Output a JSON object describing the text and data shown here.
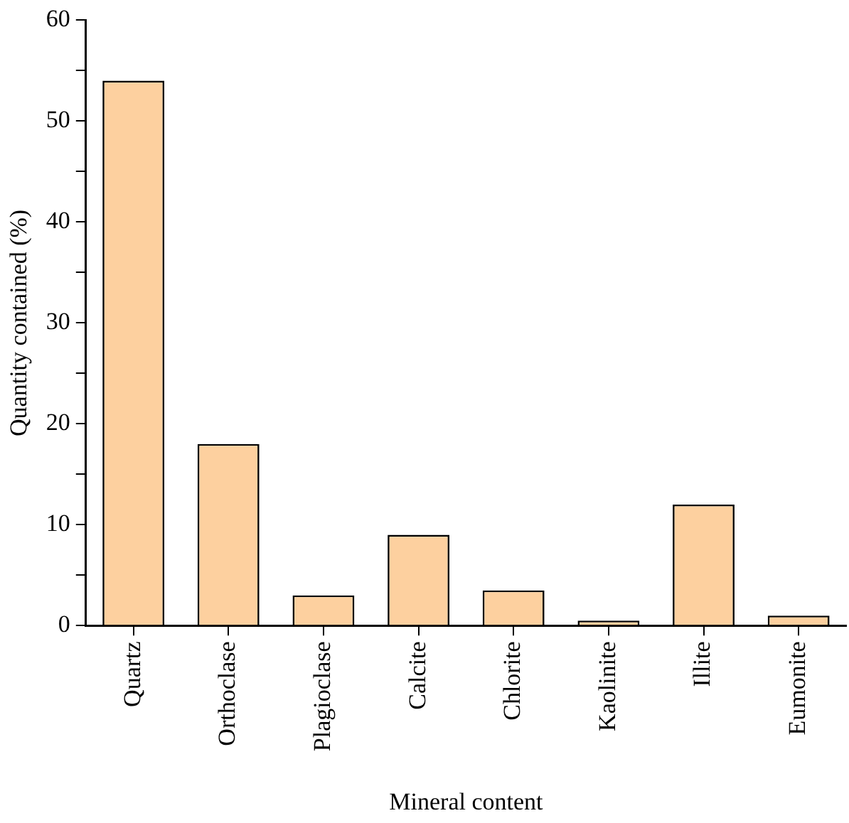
{
  "chart_data": {
    "type": "bar",
    "xlabel": "Mineral content",
    "ylabel": "Quantity contained (%)",
    "categories": [
      "Quartz",
      "Orthoclase",
      "Plagioclase",
      "Calcite",
      "Chlorite",
      "Kaolinite",
      "Illite",
      "Eumonite"
    ],
    "values": [
      54,
      18,
      3,
      9,
      3.5,
      0.5,
      12,
      1
    ],
    "color": "#fdd09f",
    "ylim": [
      0,
      60
    ],
    "yticks": [
      0,
      {
        "value": 5,
        "label": null
      },
      10,
      {
        "value": 15,
        "label": null
      },
      20,
      {
        "value": 25,
        "label": null
      },
      30,
      {
        "value": 35,
        "label": null
      },
      40,
      {
        "value": 45,
        "label": null
      },
      50,
      {
        "value": 55,
        "label": null
      },
      60
    ],
    "grid": false,
    "legend": false
  }
}
